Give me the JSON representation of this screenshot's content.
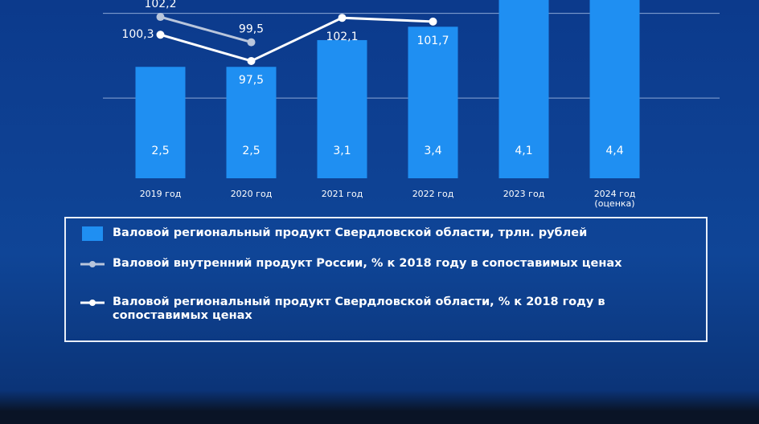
{
  "chart_data": {
    "type": "bar",
    "categories": [
      "2019 год",
      "2020 год",
      "2021 год",
      "2022 год",
      "2023 год",
      "2024 год (оценка)"
    ],
    "series": [
      {
        "name": "Валовой региональный продукт Свердловской области, трлн. рублей",
        "type": "bar",
        "color": "#1f8ff2",
        "values": [
          2.5,
          2.5,
          3.1,
          3.4,
          4.1,
          4.4
        ],
        "value_labels": [
          "2,5",
          "2,5",
          "3,1",
          "3,4",
          "4,1",
          "4,4"
        ]
      },
      {
        "name": "Валовой внутренний продукт России, % к 2018 году в сопоставимых ценах",
        "type": "line",
        "axis": "y2",
        "color": "#b9c6dc",
        "values": [
          102.2,
          99.5,
          null,
          null,
          null,
          null
        ],
        "value_labels": [
          "102,2",
          "99,5",
          null,
          null,
          null,
          null
        ]
      },
      {
        "name": "Валовой региональный продукт Свердловской области, % к 2018 году в сопоставимых ценах",
        "type": "line",
        "axis": "y2",
        "color": "#ffffff",
        "values": [
          100.3,
          97.5,
          102.1,
          101.7,
          null,
          null
        ],
        "value_labels": [
          "100,3",
          "97,5",
          "102,1",
          "101,7",
          null,
          null
        ]
      }
    ],
    "ylim": [
      0,
      4
    ],
    "y2lim": [
      85,
      104
    ],
    "grid": true,
    "grid_values": [
      1.8,
      3.7
    ]
  }
}
